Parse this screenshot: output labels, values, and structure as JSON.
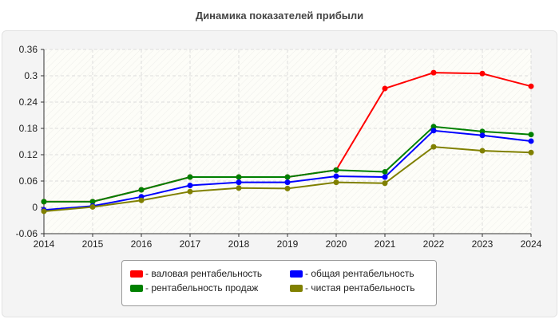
{
  "chart_data": {
    "type": "line",
    "title": "Динамика показателей прибыли",
    "x": [
      2014,
      2015,
      2016,
      2017,
      2018,
      2019,
      2020,
      2021,
      2022,
      2023,
      2024
    ],
    "xlim": [
      2014,
      2024
    ],
    "ylim": [
      -0.06,
      0.36
    ],
    "yticks": [
      -0.06,
      0,
      0.06,
      0.12,
      0.18,
      0.24,
      0.3,
      0.36
    ],
    "ytick_labels": [
      "-0.06",
      "0",
      "0.06",
      "0.12",
      "0.18",
      "0.24",
      "0.3",
      "0.36"
    ],
    "grid": true,
    "legend_position": "bottom",
    "series": [
      {
        "name": "- валовая рентабельность",
        "color": "#ff0000",
        "values": [
          0.013,
          0.013,
          0.04,
          0.069,
          0.069,
          0.069,
          0.085,
          0.271,
          0.307,
          0.305,
          0.276
        ]
      },
      {
        "name": "- общая рентабельность",
        "color": "#0000ff",
        "values": [
          -0.006,
          0.003,
          0.024,
          0.05,
          0.057,
          0.057,
          0.071,
          0.069,
          0.175,
          0.164,
          0.151
        ]
      },
      {
        "name": "- рентабельность продаж",
        "color": "#008000",
        "values": [
          0.013,
          0.013,
          0.04,
          0.069,
          0.069,
          0.069,
          0.085,
          0.081,
          0.184,
          0.173,
          0.166
        ]
      },
      {
        "name": "- чистая рентабельность",
        "color": "#808000",
        "values": [
          -0.009,
          0.001,
          0.016,
          0.036,
          0.044,
          0.043,
          0.057,
          0.055,
          0.138,
          0.129,
          0.125
        ]
      }
    ]
  }
}
